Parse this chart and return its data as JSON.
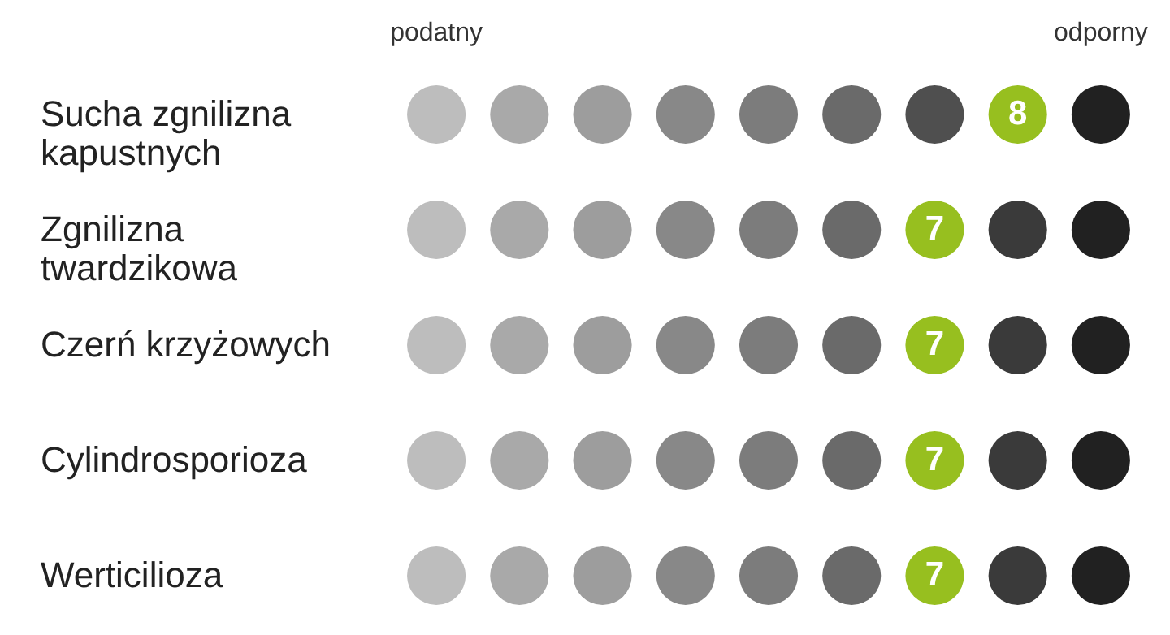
{
  "chart_data": {
    "type": "other",
    "categories": [
      "Sucha zgnilizna\nkapustnych",
      "Zgnilizna\ntwardzikowa",
      "Czerń krzyżowych",
      "Cylindrosporioza",
      "Werticilioza"
    ],
    "values": [
      8,
      7,
      7,
      7,
      7
    ],
    "colors": [
      "#97bf1f",
      "#97bf1f",
      "#97bf1f",
      "#97bf1f",
      "#97bf1f"
    ],
    "annotations": [
      "podatny",
      "odporny"
    ],
    "data_labels": true
  }
}
